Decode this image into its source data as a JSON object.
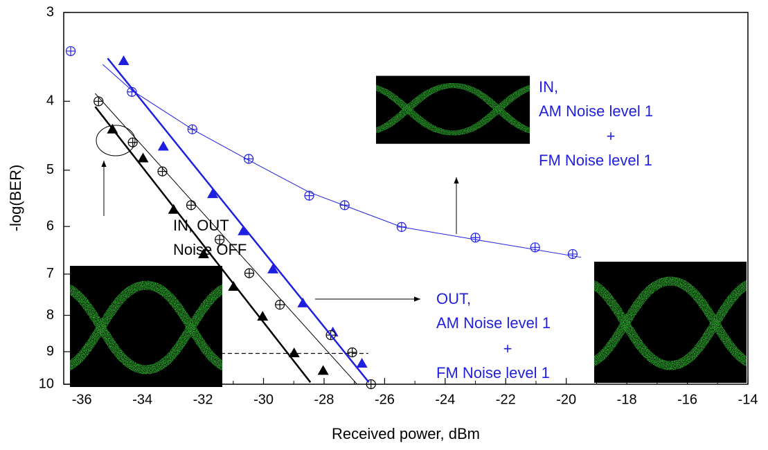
{
  "chart_data": {
    "type": "scatter",
    "x_label": "Received power, dBm",
    "y_label": "-log(BER)",
    "xlim": [
      -36.6,
      -14
    ],
    "xticks": [
      -36,
      -34,
      -32,
      -30,
      -28,
      -26,
      -24,
      -22,
      -20,
      -18,
      -16,
      -14
    ],
    "ylim": [
      3,
      10
    ],
    "yticks": [
      3,
      4,
      5,
      6,
      7,
      8,
      9,
      10
    ],
    "y_log": true,
    "y_inverted": true,
    "grid": false,
    "series": [
      {
        "marker": "circle-cross",
        "color": "#1f1fe0",
        "x": [
          -36.37,
          -34.35,
          -32.35,
          -30.49,
          -28.49,
          -27.32,
          -25.44,
          -23.0,
          -21.03,
          -19.79
        ],
        "values": [
          3.4,
          3.88,
          4.38,
          4.82,
          5.43,
          5.6,
          6.01,
          6.22,
          6.42,
          6.56
        ]
      },
      {
        "marker": "triangle",
        "color": "#1f1fe0",
        "x": [
          -34.62,
          -33.31,
          -31.68,
          -30.67,
          -29.69,
          -28.7,
          -27.71,
          -26.75
        ],
        "values": [
          3.51,
          4.63,
          5.4,
          6.09,
          6.89,
          7.69,
          8.45,
          9.35
        ]
      },
      {
        "marker": "circle-cross",
        "color": "#000000",
        "x": [
          -35.45,
          -34.32,
          -33.34,
          -32.39,
          -31.45,
          -30.47,
          -29.46,
          -27.78,
          -27.07,
          -26.45
        ],
        "values": [
          4.0,
          4.57,
          5.02,
          5.6,
          6.26,
          6.98,
          7.73,
          8.53,
          9.02,
          10.0
        ]
      },
      {
        "marker": "triangle",
        "color": "#000000",
        "x": [
          -34.99,
          -33.98,
          -32.97,
          -31.98,
          -30.99,
          -30.03,
          -28.99,
          -28.03
        ],
        "values": [
          4.38,
          4.81,
          5.68,
          6.56,
          7.29,
          8.03,
          9.04,
          9.57
        ]
      },
      {
        "marker": "line",
        "color": "#1f1fe0",
        "width": 1,
        "x": [
          -35.31,
          -34.35,
          -32.35,
          -30.49,
          -28.49,
          -25.44,
          -23.0,
          -19.51
        ],
        "values": [
          3.55,
          3.86,
          4.38,
          4.84,
          5.37,
          6.01,
          6.26,
          6.63
        ]
      },
      {
        "marker": "line",
        "color": "#1f1fe0",
        "width": 2.5,
        "x": [
          -35.15,
          -26.52
        ],
        "values": [
          3.48,
          9.94
        ]
      },
      {
        "marker": "line",
        "color": "#000000",
        "width": 2.5,
        "x": [
          -35.56,
          -28.45
        ],
        "values": [
          4.07,
          9.94
        ]
      },
      {
        "marker": "line",
        "color": "#000000",
        "width": 1,
        "x": [
          -35.56,
          -26.91
        ],
        "values": [
          3.9,
          10.0
        ]
      },
      {
        "marker": "dashed",
        "color": "#000000",
        "width": 1.2,
        "x": [
          -31.41,
          -26.54
        ],
        "values": [
          9.05,
          9.05
        ]
      }
    ],
    "annotations": [
      {
        "color": "#000000",
        "lines": [
          "IN, OUT",
          "Noise OFF"
        ]
      },
      {
        "color": "#1f1fe0",
        "lines": [
          "IN,",
          "AM Noise level 1",
          "+",
          "FM Noise level 1"
        ]
      },
      {
        "color": "#1f1fe0",
        "lines": [
          "OUT,",
          "AM Noise level 1",
          "+",
          "FM Noise level 1"
        ]
      }
    ]
  }
}
